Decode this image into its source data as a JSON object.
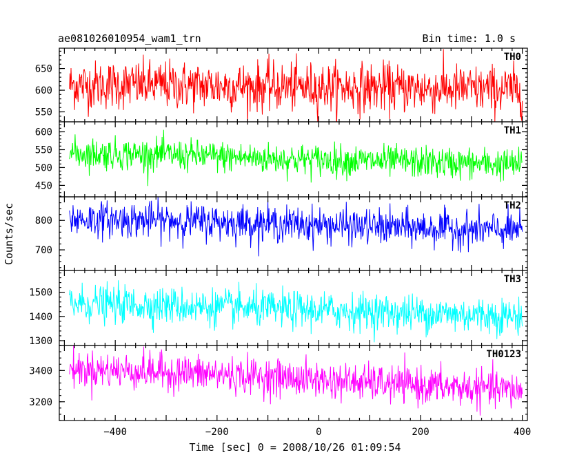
{
  "chart_data": {
    "type": "line",
    "title_left": "ae081026010954_wam1_trn",
    "title_right": "Bin time: 1.0 s",
    "xlabel": "Time [sec] 0 = 2008/10/26 01:09:54",
    "ylabel": "Counts/sec",
    "xlim": [
      -510,
      410
    ],
    "x_ticks": [
      -400,
      -200,
      0,
      200,
      400
    ],
    "x_data_range": [
      -490,
      400
    ],
    "bin_time": 1.0,
    "panels": [
      {
        "name": "TH0",
        "color": "#ff0000",
        "ylim": [
          527,
          697
        ],
        "y_ticks": [
          550,
          600,
          650
        ],
        "trend": [
          [
            -490,
            612
          ],
          [
            -300,
            612
          ],
          [
            -100,
            608
          ],
          [
            100,
            606
          ],
          [
            400,
            600
          ]
        ],
        "noise_sd": 28
      },
      {
        "name": "TH1",
        "color": "#00ff00",
        "ylim": [
          418,
          628
        ],
        "y_ticks": [
          450,
          500,
          550,
          600
        ],
        "trend": [
          [
            -490,
            540
          ],
          [
            -300,
            536
          ],
          [
            -100,
            525
          ],
          [
            100,
            518
          ],
          [
            400,
            508
          ]
        ],
        "noise_sd": 22
      },
      {
        "name": "TH2",
        "color": "#0000ff",
        "ylim": [
          630,
          880
        ],
        "y_ticks": [
          700,
          800
        ],
        "trend": [
          [
            -490,
            805
          ],
          [
            -300,
            800
          ],
          [
            -100,
            790
          ],
          [
            100,
            778
          ],
          [
            400,
            765
          ]
        ],
        "noise_sd": 30
      },
      {
        "name": "TH3",
        "color": "#00ffff",
        "ylim": [
          1280,
          1590
        ],
        "y_ticks": [
          1300,
          1400,
          1500
        ],
        "trend": [
          [
            -490,
            1455
          ],
          [
            -300,
            1445
          ],
          [
            -100,
            1430
          ],
          [
            100,
            1420
          ],
          [
            400,
            1400
          ]
        ],
        "noise_sd": 38
      },
      {
        "name": "TH0123",
        "color": "#ff00ff",
        "ylim": [
          3080,
          3560
        ],
        "y_ticks": [
          3200,
          3400
        ],
        "trend": [
          [
            -490,
            3410
          ],
          [
            -300,
            3390
          ],
          [
            -100,
            3360
          ],
          [
            100,
            3320
          ],
          [
            400,
            3270
          ]
        ],
        "noise_sd": 58
      }
    ]
  }
}
